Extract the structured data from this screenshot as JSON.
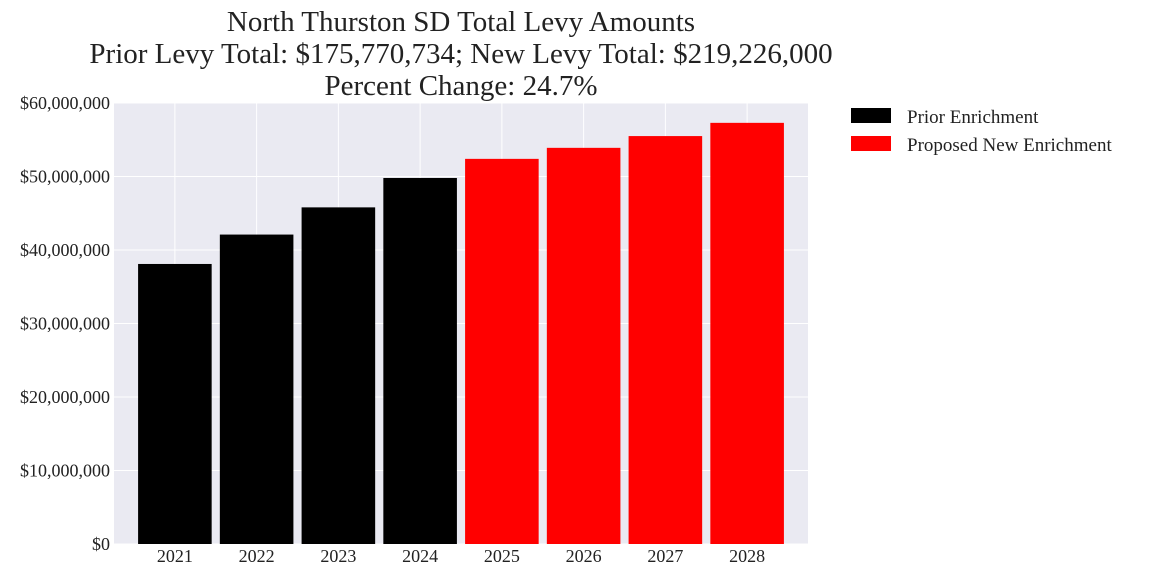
{
  "chart_data": {
    "type": "bar",
    "title_lines": [
      "North Thurston SD Total Levy Amounts",
      "Prior Levy Total:  $175,770,734; New Levy Total: $219,226,000",
      "Percent Change: 24.7%"
    ],
    "xlabel": "",
    "ylabel": "",
    "categories": [
      "2021",
      "2022",
      "2023",
      "2024",
      "2025",
      "2026",
      "2027",
      "2028"
    ],
    "series": [
      {
        "name": "Prior Enrichment",
        "color": "#000000",
        "values": [
          38100000,
          42100000,
          45800000,
          49800000,
          null,
          null,
          null,
          null
        ]
      },
      {
        "name": "Proposed New Enrichment",
        "color": "#ff0000",
        "values": [
          null,
          null,
          null,
          null,
          52400000,
          53900000,
          55500000,
          57300000
        ]
      }
    ],
    "ylim": [
      0,
      60000000
    ],
    "yticks": [
      0,
      10000000,
      20000000,
      30000000,
      40000000,
      50000000,
      60000000
    ],
    "ytick_labels": [
      "$0",
      "$10,000,000",
      "$20,000,000",
      "$30,000,000",
      "$40,000,000",
      "$50,000,000",
      "$60,000,000"
    ],
    "grid": true,
    "legend_position": "outside-top-right",
    "plot_background": "#eaeaf2"
  }
}
